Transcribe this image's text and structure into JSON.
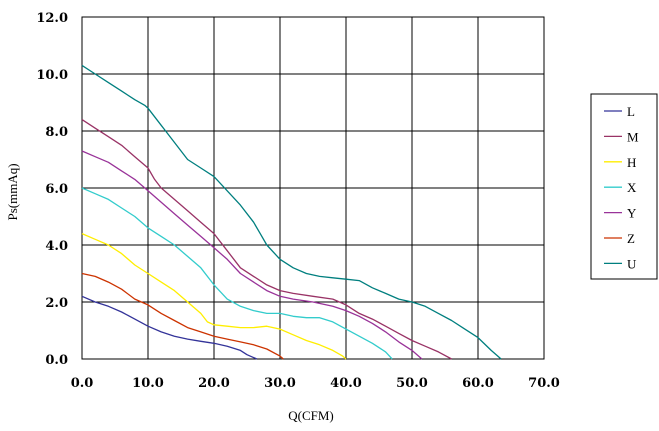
{
  "chart_data": {
    "type": "line",
    "title": "",
    "xlabel": "Q(CFM)",
    "ylabel": "Ps(mmAq)",
    "xlim": [
      0,
      70
    ],
    "ylim": [
      0,
      12
    ],
    "x_ticks": [
      "0.0",
      "10.0",
      "20.0",
      "30.0",
      "40.0",
      "50.0",
      "60.0",
      "70.0"
    ],
    "y_ticks": [
      "0.0",
      "2.0",
      "4.0",
      "6.0",
      "8.0",
      "10.0",
      "12.0"
    ],
    "x_tick_values": [
      0,
      10,
      20,
      30,
      40,
      50,
      60,
      70
    ],
    "y_tick_values": [
      0,
      2,
      4,
      6,
      8,
      10,
      12
    ],
    "grid": true,
    "legend_position": "right",
    "series": [
      {
        "name": "L",
        "color": "#333399",
        "points": [
          [
            0,
            2.2
          ],
          [
            2,
            2.0
          ],
          [
            4,
            1.85
          ],
          [
            6,
            1.65
          ],
          [
            8,
            1.4
          ],
          [
            10,
            1.15
          ],
          [
            12,
            0.95
          ],
          [
            14,
            0.8
          ],
          [
            16,
            0.7
          ],
          [
            18,
            0.62
          ],
          [
            20,
            0.55
          ],
          [
            22,
            0.45
          ],
          [
            24,
            0.3
          ],
          [
            25,
            0.15
          ],
          [
            26.5,
            0.0
          ]
        ]
      },
      {
        "name": "M",
        "color": "#993366",
        "points": [
          [
            0,
            8.4
          ],
          [
            2,
            8.1
          ],
          [
            4,
            7.8
          ],
          [
            6,
            7.5
          ],
          [
            8,
            7.1
          ],
          [
            10,
            6.7
          ],
          [
            11,
            6.3
          ],
          [
            12,
            6.0
          ],
          [
            14,
            5.6
          ],
          [
            16,
            5.2
          ],
          [
            18,
            4.8
          ],
          [
            20,
            4.4
          ],
          [
            21,
            4.1
          ],
          [
            22,
            3.8
          ],
          [
            24,
            3.2
          ],
          [
            26,
            2.9
          ],
          [
            28,
            2.6
          ],
          [
            30,
            2.4
          ],
          [
            32,
            2.3
          ],
          [
            35,
            2.2
          ],
          [
            38,
            2.1
          ],
          [
            40,
            1.9
          ],
          [
            42,
            1.6
          ],
          [
            44,
            1.4
          ],
          [
            46,
            1.15
          ],
          [
            48,
            0.9
          ],
          [
            50,
            0.65
          ],
          [
            52,
            0.45
          ],
          [
            54,
            0.25
          ],
          [
            56,
            0.0
          ]
        ]
      },
      {
        "name": "H",
        "color": "#FFEE00",
        "points": [
          [
            0,
            4.4
          ],
          [
            2,
            4.2
          ],
          [
            4,
            4.0
          ],
          [
            6,
            3.7
          ],
          [
            8,
            3.3
          ],
          [
            10,
            3.0
          ],
          [
            12,
            2.7
          ],
          [
            14,
            2.4
          ],
          [
            16,
            2.0
          ],
          [
            18,
            1.6
          ],
          [
            19,
            1.3
          ],
          [
            20,
            1.2
          ],
          [
            22,
            1.15
          ],
          [
            24,
            1.1
          ],
          [
            26,
            1.1
          ],
          [
            28,
            1.15
          ],
          [
            30,
            1.05
          ],
          [
            32,
            0.85
          ],
          [
            34,
            0.65
          ],
          [
            36,
            0.5
          ],
          [
            38,
            0.3
          ],
          [
            39.5,
            0.1
          ],
          [
            40,
            0.0
          ]
        ]
      },
      {
        "name": "X",
        "color": "#33CCCC",
        "points": [
          [
            0,
            6.0
          ],
          [
            2,
            5.8
          ],
          [
            4,
            5.6
          ],
          [
            6,
            5.3
          ],
          [
            8,
            5.0
          ],
          [
            10,
            4.6
          ],
          [
            12,
            4.3
          ],
          [
            14,
            4.0
          ],
          [
            16,
            3.6
          ],
          [
            18,
            3.2
          ],
          [
            20,
            2.6
          ],
          [
            22,
            2.1
          ],
          [
            24,
            1.85
          ],
          [
            26,
            1.7
          ],
          [
            28,
            1.6
          ],
          [
            30,
            1.6
          ],
          [
            32,
            1.5
          ],
          [
            34,
            1.45
          ],
          [
            36,
            1.45
          ],
          [
            38,
            1.3
          ],
          [
            40,
            1.05
          ],
          [
            42,
            0.8
          ],
          [
            44,
            0.55
          ],
          [
            46,
            0.25
          ],
          [
            47,
            0.0
          ]
        ]
      },
      {
        "name": "Y",
        "color": "#993399",
        "points": [
          [
            0,
            7.3
          ],
          [
            2,
            7.1
          ],
          [
            4,
            6.9
          ],
          [
            6,
            6.6
          ],
          [
            8,
            6.3
          ],
          [
            10,
            5.9
          ],
          [
            12,
            5.5
          ],
          [
            14,
            5.1
          ],
          [
            16,
            4.7
          ],
          [
            18,
            4.3
          ],
          [
            20,
            3.9
          ],
          [
            22,
            3.5
          ],
          [
            24,
            3.0
          ],
          [
            26,
            2.7
          ],
          [
            28,
            2.4
          ],
          [
            30,
            2.2
          ],
          [
            32,
            2.1
          ],
          [
            35,
            2.0
          ],
          [
            38,
            1.85
          ],
          [
            40,
            1.7
          ],
          [
            42,
            1.5
          ],
          [
            44,
            1.25
          ],
          [
            46,
            0.95
          ],
          [
            48,
            0.6
          ],
          [
            50,
            0.3
          ],
          [
            51.5,
            0.0
          ]
        ]
      },
      {
        "name": "Z",
        "color": "#CC3300",
        "points": [
          [
            0,
            3.0
          ],
          [
            2,
            2.9
          ],
          [
            4,
            2.7
          ],
          [
            6,
            2.45
          ],
          [
            8,
            2.1
          ],
          [
            10,
            1.9
          ],
          [
            12,
            1.6
          ],
          [
            14,
            1.35
          ],
          [
            16,
            1.1
          ],
          [
            18,
            0.95
          ],
          [
            20,
            0.8
          ],
          [
            22,
            0.7
          ],
          [
            24,
            0.6
          ],
          [
            26,
            0.5
          ],
          [
            28,
            0.35
          ],
          [
            30,
            0.1
          ],
          [
            30.5,
            0.0
          ]
        ]
      },
      {
        "name": "U",
        "color": "#007F7F",
        "points": [
          [
            0,
            10.3
          ],
          [
            2,
            10.0
          ],
          [
            4,
            9.7
          ],
          [
            6,
            9.4
          ],
          [
            8,
            9.1
          ],
          [
            9.5,
            8.9
          ],
          [
            10,
            8.8
          ],
          [
            12,
            8.2
          ],
          [
            14,
            7.6
          ],
          [
            16,
            7.0
          ],
          [
            18,
            6.7
          ],
          [
            20,
            6.4
          ],
          [
            22,
            5.9
          ],
          [
            24,
            5.4
          ],
          [
            26,
            4.8
          ],
          [
            27,
            4.4
          ],
          [
            28,
            4.0
          ],
          [
            30,
            3.5
          ],
          [
            32,
            3.2
          ],
          [
            34,
            3.0
          ],
          [
            36,
            2.9
          ],
          [
            38,
            2.85
          ],
          [
            40,
            2.8
          ],
          [
            42,
            2.75
          ],
          [
            44,
            2.5
          ],
          [
            46,
            2.3
          ],
          [
            48,
            2.1
          ],
          [
            50,
            2.0
          ],
          [
            52,
            1.85
          ],
          [
            54,
            1.6
          ],
          [
            56,
            1.35
          ],
          [
            58,
            1.05
          ],
          [
            60,
            0.75
          ],
          [
            62,
            0.3
          ],
          [
            63.5,
            0.0
          ]
        ]
      }
    ]
  }
}
